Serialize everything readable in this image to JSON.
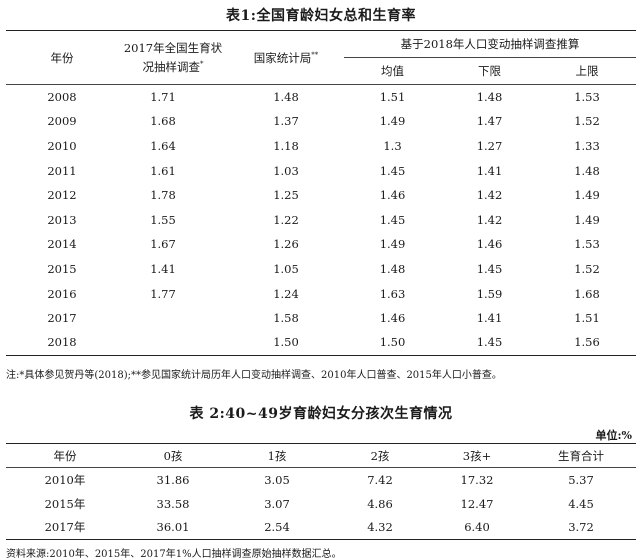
{
  "table1": {
    "title": "表1:全国育龄妇女总和生育率",
    "header": {
      "year": "年份",
      "survey2017_line1": "2017年全国生育状",
      "survey2017_line2": "况抽样调查",
      "survey2017_mark": "*",
      "nbs": "国家统计局",
      "nbs_mark": "**",
      "group": "基于2018年人口变动抽样调查推算",
      "mean": "均值",
      "lower": "下限",
      "upper": "上限"
    },
    "rows": [
      {
        "year": "2008",
        "survey": "1.71",
        "nbs": "1.48",
        "mean": "1.51",
        "lower": "1.48",
        "upper": "1.53"
      },
      {
        "year": "2009",
        "survey": "1.68",
        "nbs": "1.37",
        "mean": "1.49",
        "lower": "1.47",
        "upper": "1.52"
      },
      {
        "year": "2010",
        "survey": "1.64",
        "nbs": "1.18",
        "mean": "1.3",
        "lower": "1.27",
        "upper": "1.33"
      },
      {
        "year": "2011",
        "survey": "1.61",
        "nbs": "1.03",
        "mean": "1.45",
        "lower": "1.41",
        "upper": "1.48"
      },
      {
        "year": "2012",
        "survey": "1.78",
        "nbs": "1.25",
        "mean": "1.46",
        "lower": "1.42",
        "upper": "1.49"
      },
      {
        "year": "2013",
        "survey": "1.55",
        "nbs": "1.22",
        "mean": "1.45",
        "lower": "1.42",
        "upper": "1.49"
      },
      {
        "year": "2014",
        "survey": "1.67",
        "nbs": "1.26",
        "mean": "1.49",
        "lower": "1.46",
        "upper": "1.53"
      },
      {
        "year": "2015",
        "survey": "1.41",
        "nbs": "1.05",
        "mean": "1.48",
        "lower": "1.45",
        "upper": "1.52"
      },
      {
        "year": "2016",
        "survey": "1.77",
        "nbs": "1.24",
        "mean": "1.63",
        "lower": "1.59",
        "upper": "1.68"
      },
      {
        "year": "2017",
        "survey": "",
        "nbs": "1.58",
        "mean": "1.46",
        "lower": "1.41",
        "upper": "1.51"
      },
      {
        "year": "2018",
        "survey": "",
        "nbs": "1.50",
        "mean": "1.50",
        "lower": "1.45",
        "upper": "1.56"
      }
    ],
    "note": "注:*具体参见贺丹等(2018);**参见国家统计局历年人口变动抽样调查、2010年人口普查、2015年人口小普查。"
  },
  "table2": {
    "title": "表 2:40~49岁育龄妇女分孩次生育情况",
    "unit": "单位:%",
    "headers": [
      "年份",
      "0孩",
      "1孩",
      "2孩",
      "3孩+",
      "生育合计"
    ],
    "rows": [
      [
        "2010年",
        "31.86",
        "3.05",
        "7.42",
        "17.32",
        "5.37"
      ],
      [
        "2015年",
        "33.58",
        "3.07",
        "4.86",
        "12.47",
        "4.45"
      ],
      [
        "2017年",
        "36.01",
        "2.54",
        "4.32",
        "6.40",
        "3.72"
      ]
    ],
    "source": "资料来源:2010年、2015年、2017年1%人口抽样调查原始抽样数据汇总。"
  }
}
